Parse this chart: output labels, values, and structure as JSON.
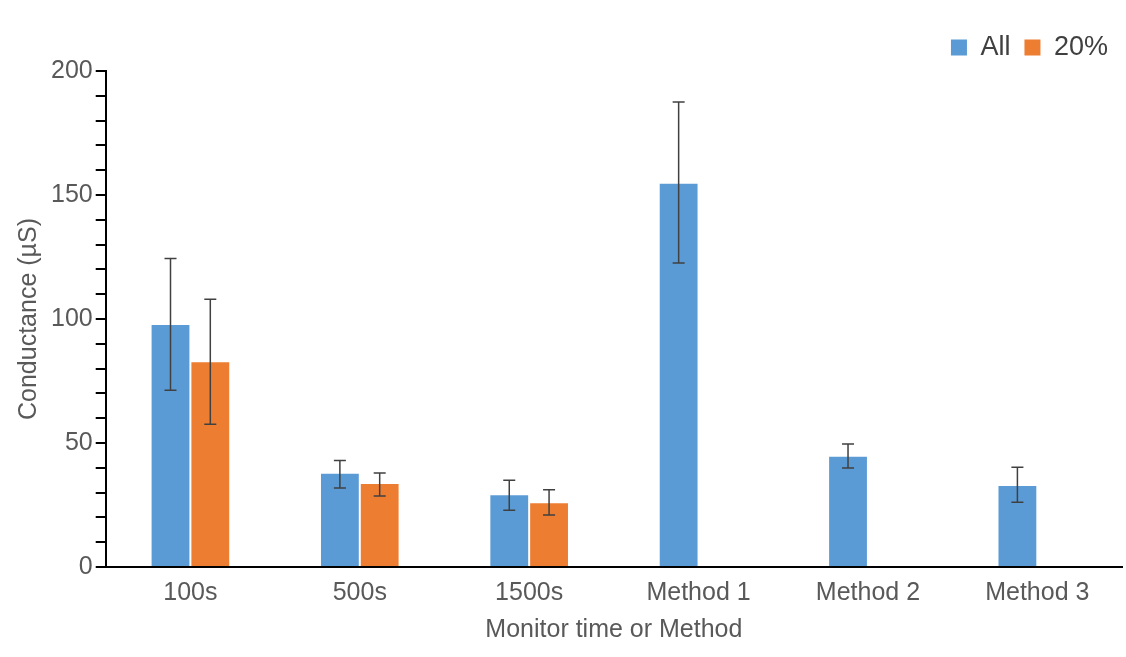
{
  "chart_data": {
    "type": "bar",
    "xlabel": "Monitor time or Method",
    "ylabel": "Conductance (µS)",
    "categories": [
      "100s",
      "500s",
      "1500s",
      "Method 1",
      "Method 2",
      "Method 3"
    ],
    "series": [
      {
        "name": "All",
        "color": "#5b9bd5",
        "values": [
          97.6,
          37.6,
          28.9,
          154.5,
          44.5,
          32.7
        ],
        "errors": [
          [
            71.3,
            124.4
          ],
          [
            31.9,
            42.9
          ],
          [
            22.9,
            35
          ],
          [
            122.6,
            187.5
          ],
          [
            39.9,
            49.6
          ],
          [
            26.1,
            40.2
          ]
        ]
      },
      {
        "name": "20%",
        "color": "#ed7d31",
        "values": [
          82.6,
          33.5,
          25.7,
          null,
          null,
          null
        ],
        "errors": [
          [
            57.6,
            108
          ],
          [
            28.6,
            37.9
          ],
          [
            21,
            31.1
          ],
          null,
          null,
          null
        ]
      }
    ],
    "ylim": [
      0,
      200
    ],
    "yticks": [
      0,
      {
        "value": 10,
        "label": null
      },
      {
        "value": 20,
        "label": null
      },
      {
        "value": 30,
        "label": null
      },
      {
        "value": 40,
        "label": null
      },
      50,
      {
        "value": 60,
        "label": null
      },
      {
        "value": 70,
        "label": null
      },
      {
        "value": 80,
        "label": null
      },
      {
        "value": 90,
        "label": null
      },
      100,
      {
        "value": 110,
        "label": null
      },
      {
        "value": 120,
        "label": null
      },
      {
        "value": 130,
        "label": null
      },
      {
        "value": 140,
        "label": null
      },
      150,
      {
        "value": 160,
        "label": null
      },
      {
        "value": 170,
        "label": null
      },
      {
        "value": 180,
        "label": null
      },
      {
        "value": 190,
        "label": null
      },
      200
    ],
    "grid": false,
    "legend": "top right"
  }
}
